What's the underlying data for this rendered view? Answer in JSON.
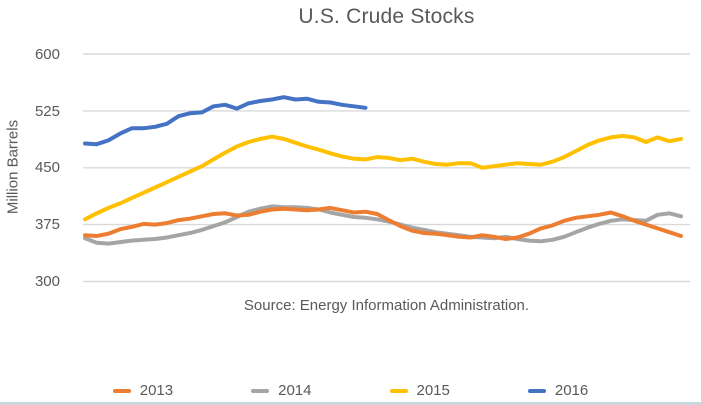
{
  "chart_data": {
    "type": "line",
    "title": "U.S. Crude Stocks",
    "ylabel": "Million Barrels",
    "xlabel": "",
    "annotation": "Source: Energy Information Administration.",
    "x_unit": "week-of-year",
    "x_range": [
      1,
      52
    ],
    "ylim": [
      300,
      600
    ],
    "yticks": [
      600,
      525,
      450,
      375,
      300
    ],
    "grid": "horizontal-only",
    "legend_position": "bottom",
    "gridline_color": "#d9d9d9",
    "text_color": "#595959",
    "series": [
      {
        "name": "2013",
        "color": "#ED7D31",
        "values": [
          361,
          360,
          363,
          369,
          372,
          376,
          375,
          377,
          381,
          383,
          386,
          389,
          390,
          387,
          388,
          392,
          395,
          396,
          395,
          394,
          395,
          397,
          394,
          391,
          392,
          389,
          381,
          373,
          367,
          364,
          363,
          361,
          359,
          358,
          361,
          359,
          356,
          358,
          363,
          370,
          374,
          380,
          384,
          386,
          388,
          391,
          386,
          380,
          375,
          370,
          365,
          360
        ]
      },
      {
        "name": "2014",
        "color": "#A5A5A5",
        "values": [
          357,
          351,
          350,
          352,
          354,
          355,
          356,
          358,
          361,
          364,
          368,
          373,
          378,
          385,
          392,
          396,
          399,
          398,
          398,
          397,
          395,
          391,
          388,
          385,
          384,
          382,
          379,
          375,
          371,
          368,
          365,
          363,
          361,
          359,
          358,
          357,
          359,
          356,
          354,
          353,
          355,
          359,
          365,
          371,
          376,
          380,
          382,
          381,
          380,
          388,
          390,
          386
        ]
      },
      {
        "name": "2015",
        "color": "#FFC000",
        "values": [
          382,
          390,
          397,
          403,
          410,
          417,
          424,
          431,
          438,
          445,
          452,
          461,
          470,
          478,
          484,
          488,
          491,
          488,
          483,
          478,
          474,
          469,
          465,
          462,
          461,
          464,
          463,
          460,
          462,
          458,
          455,
          454,
          456,
          456,
          450,
          452,
          454,
          456,
          455,
          454,
          458,
          464,
          472,
          480,
          486,
          490,
          492,
          490,
          484,
          490,
          485,
          488
        ]
      },
      {
        "name": "2016",
        "color": "#4472C4",
        "values": [
          482,
          481,
          486,
          495,
          502,
          502,
          504,
          508,
          518,
          522,
          523,
          531,
          533,
          528,
          535,
          538,
          540,
          543,
          540,
          541,
          537,
          536,
          533,
          531,
          529
        ]
      }
    ]
  }
}
